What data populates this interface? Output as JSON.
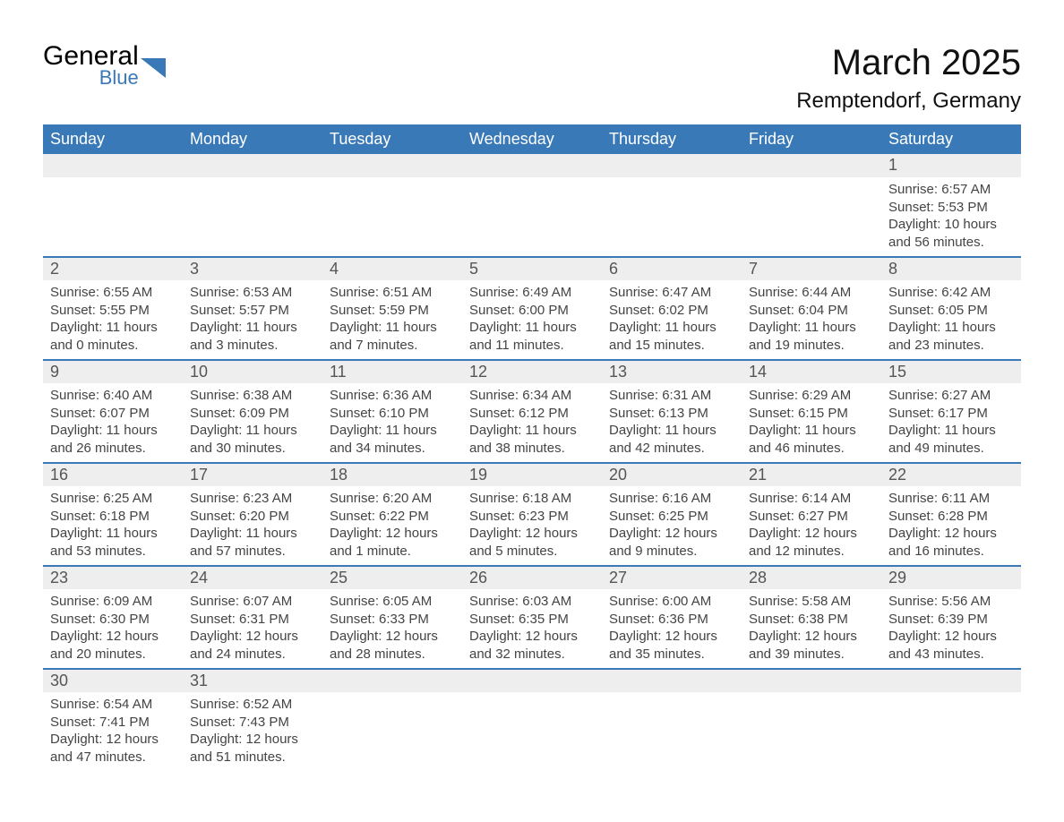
{
  "brand": {
    "word1": "General",
    "word2": "Blue",
    "shape_color": "#3a79b7"
  },
  "title": "March 2025",
  "location": "Remptendorf, Germany",
  "columns": [
    "Sunday",
    "Monday",
    "Tuesday",
    "Wednesday",
    "Thursday",
    "Friday",
    "Saturday"
  ],
  "colors": {
    "header_bg": "#3a79b7",
    "header_text": "#ffffff",
    "daynum_bg": "#eeeeee",
    "row_divider": "#3a79b7",
    "body_text": "#444444",
    "background": "#ffffff"
  },
  "typography": {
    "title_fontsize": 40,
    "location_fontsize": 24,
    "header_fontsize": 18,
    "daynum_fontsize": 18,
    "detail_fontsize": 15,
    "font_family": "Arial"
  },
  "weeks": [
    [
      null,
      null,
      null,
      null,
      null,
      null,
      {
        "n": "1",
        "sunrise": "Sunrise: 6:57 AM",
        "sunset": "Sunset: 5:53 PM",
        "day1": "Daylight: 10 hours",
        "day2": "and 56 minutes."
      }
    ],
    [
      {
        "n": "2",
        "sunrise": "Sunrise: 6:55 AM",
        "sunset": "Sunset: 5:55 PM",
        "day1": "Daylight: 11 hours",
        "day2": "and 0 minutes."
      },
      {
        "n": "3",
        "sunrise": "Sunrise: 6:53 AM",
        "sunset": "Sunset: 5:57 PM",
        "day1": "Daylight: 11 hours",
        "day2": "and 3 minutes."
      },
      {
        "n": "4",
        "sunrise": "Sunrise: 6:51 AM",
        "sunset": "Sunset: 5:59 PM",
        "day1": "Daylight: 11 hours",
        "day2": "and 7 minutes."
      },
      {
        "n": "5",
        "sunrise": "Sunrise: 6:49 AM",
        "sunset": "Sunset: 6:00 PM",
        "day1": "Daylight: 11 hours",
        "day2": "and 11 minutes."
      },
      {
        "n": "6",
        "sunrise": "Sunrise: 6:47 AM",
        "sunset": "Sunset: 6:02 PM",
        "day1": "Daylight: 11 hours",
        "day2": "and 15 minutes."
      },
      {
        "n": "7",
        "sunrise": "Sunrise: 6:44 AM",
        "sunset": "Sunset: 6:04 PM",
        "day1": "Daylight: 11 hours",
        "day2": "and 19 minutes."
      },
      {
        "n": "8",
        "sunrise": "Sunrise: 6:42 AM",
        "sunset": "Sunset: 6:05 PM",
        "day1": "Daylight: 11 hours",
        "day2": "and 23 minutes."
      }
    ],
    [
      {
        "n": "9",
        "sunrise": "Sunrise: 6:40 AM",
        "sunset": "Sunset: 6:07 PM",
        "day1": "Daylight: 11 hours",
        "day2": "and 26 minutes."
      },
      {
        "n": "10",
        "sunrise": "Sunrise: 6:38 AM",
        "sunset": "Sunset: 6:09 PM",
        "day1": "Daylight: 11 hours",
        "day2": "and 30 minutes."
      },
      {
        "n": "11",
        "sunrise": "Sunrise: 6:36 AM",
        "sunset": "Sunset: 6:10 PM",
        "day1": "Daylight: 11 hours",
        "day2": "and 34 minutes."
      },
      {
        "n": "12",
        "sunrise": "Sunrise: 6:34 AM",
        "sunset": "Sunset: 6:12 PM",
        "day1": "Daylight: 11 hours",
        "day2": "and 38 minutes."
      },
      {
        "n": "13",
        "sunrise": "Sunrise: 6:31 AM",
        "sunset": "Sunset: 6:13 PM",
        "day1": "Daylight: 11 hours",
        "day2": "and 42 minutes."
      },
      {
        "n": "14",
        "sunrise": "Sunrise: 6:29 AM",
        "sunset": "Sunset: 6:15 PM",
        "day1": "Daylight: 11 hours",
        "day2": "and 46 minutes."
      },
      {
        "n": "15",
        "sunrise": "Sunrise: 6:27 AM",
        "sunset": "Sunset: 6:17 PM",
        "day1": "Daylight: 11 hours",
        "day2": "and 49 minutes."
      }
    ],
    [
      {
        "n": "16",
        "sunrise": "Sunrise: 6:25 AM",
        "sunset": "Sunset: 6:18 PM",
        "day1": "Daylight: 11 hours",
        "day2": "and 53 minutes."
      },
      {
        "n": "17",
        "sunrise": "Sunrise: 6:23 AM",
        "sunset": "Sunset: 6:20 PM",
        "day1": "Daylight: 11 hours",
        "day2": "and 57 minutes."
      },
      {
        "n": "18",
        "sunrise": "Sunrise: 6:20 AM",
        "sunset": "Sunset: 6:22 PM",
        "day1": "Daylight: 12 hours",
        "day2": "and 1 minute."
      },
      {
        "n": "19",
        "sunrise": "Sunrise: 6:18 AM",
        "sunset": "Sunset: 6:23 PM",
        "day1": "Daylight: 12 hours",
        "day2": "and 5 minutes."
      },
      {
        "n": "20",
        "sunrise": "Sunrise: 6:16 AM",
        "sunset": "Sunset: 6:25 PM",
        "day1": "Daylight: 12 hours",
        "day2": "and 9 minutes."
      },
      {
        "n": "21",
        "sunrise": "Sunrise: 6:14 AM",
        "sunset": "Sunset: 6:27 PM",
        "day1": "Daylight: 12 hours",
        "day2": "and 12 minutes."
      },
      {
        "n": "22",
        "sunrise": "Sunrise: 6:11 AM",
        "sunset": "Sunset: 6:28 PM",
        "day1": "Daylight: 12 hours",
        "day2": "and 16 minutes."
      }
    ],
    [
      {
        "n": "23",
        "sunrise": "Sunrise: 6:09 AM",
        "sunset": "Sunset: 6:30 PM",
        "day1": "Daylight: 12 hours",
        "day2": "and 20 minutes."
      },
      {
        "n": "24",
        "sunrise": "Sunrise: 6:07 AM",
        "sunset": "Sunset: 6:31 PM",
        "day1": "Daylight: 12 hours",
        "day2": "and 24 minutes."
      },
      {
        "n": "25",
        "sunrise": "Sunrise: 6:05 AM",
        "sunset": "Sunset: 6:33 PM",
        "day1": "Daylight: 12 hours",
        "day2": "and 28 minutes."
      },
      {
        "n": "26",
        "sunrise": "Sunrise: 6:03 AM",
        "sunset": "Sunset: 6:35 PM",
        "day1": "Daylight: 12 hours",
        "day2": "and 32 minutes."
      },
      {
        "n": "27",
        "sunrise": "Sunrise: 6:00 AM",
        "sunset": "Sunset: 6:36 PM",
        "day1": "Daylight: 12 hours",
        "day2": "and 35 minutes."
      },
      {
        "n": "28",
        "sunrise": "Sunrise: 5:58 AM",
        "sunset": "Sunset: 6:38 PM",
        "day1": "Daylight: 12 hours",
        "day2": "and 39 minutes."
      },
      {
        "n": "29",
        "sunrise": "Sunrise: 5:56 AM",
        "sunset": "Sunset: 6:39 PM",
        "day1": "Daylight: 12 hours",
        "day2": "and 43 minutes."
      }
    ],
    [
      {
        "n": "30",
        "sunrise": "Sunrise: 6:54 AM",
        "sunset": "Sunset: 7:41 PM",
        "day1": "Daylight: 12 hours",
        "day2": "and 47 minutes."
      },
      {
        "n": "31",
        "sunrise": "Sunrise: 6:52 AM",
        "sunset": "Sunset: 7:43 PM",
        "day1": "Daylight: 12 hours",
        "day2": "and 51 minutes."
      },
      null,
      null,
      null,
      null,
      null
    ]
  ]
}
